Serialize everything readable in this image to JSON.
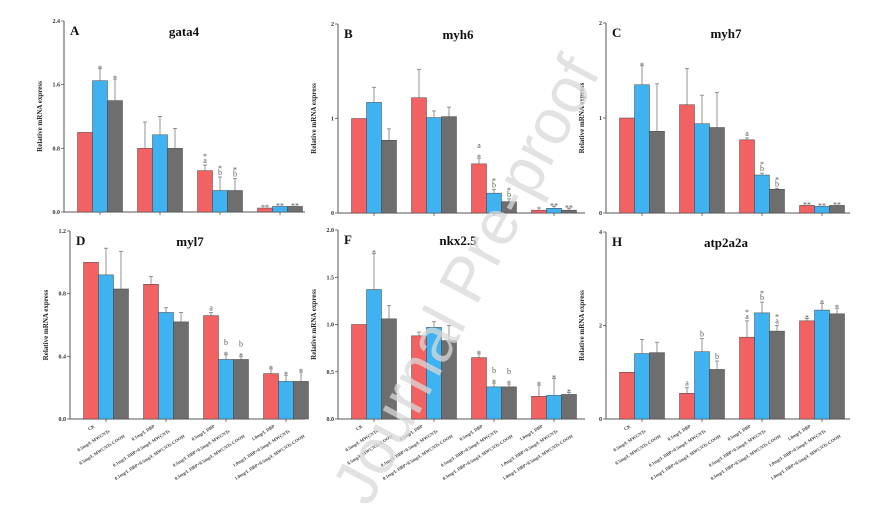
{
  "watermark": "Journal Pre-proof",
  "colors": {
    "series": [
      "#f26262",
      "#3fb3f2",
      "#6e6e6e"
    ],
    "axis": "#555555"
  },
  "chart_data": [
    {
      "panel": "A",
      "title": "gata4",
      "type": "bar",
      "ylabel": "Relative mRNA express",
      "ylim": [
        0,
        2.4
      ],
      "yticks": [
        "0.0",
        "0.8",
        "1.6",
        "2.4"
      ],
      "values": [
        [
          1.0,
          1.65,
          1.4
        ],
        [
          0.8,
          0.97,
          0.8
        ],
        [
          0.52,
          0.27,
          0.27
        ],
        [
          0.05,
          0.07,
          0.07
        ]
      ],
      "errors": [
        [
          0,
          0.15,
          0.27
        ],
        [
          0.33,
          0.23,
          0.25
        ],
        [
          0.07,
          0.17,
          0.15
        ],
        [
          0,
          0,
          0
        ]
      ],
      "annotations": [
        [
          [],
          [
            "*"
          ],
          [
            "*"
          ]
        ],
        [
          [],
          [],
          []
        ],
        [
          [
            "*",
            "a"
          ],
          [
            "*",
            "b"
          ],
          [
            "*",
            "b"
          ]
        ],
        [
          [
            "**"
          ],
          [
            "**"
          ],
          [
            "**"
          ]
        ]
      ]
    },
    {
      "panel": "B",
      "title": "myh6",
      "type": "bar",
      "ylabel": "Relative mRNA express",
      "ylim": [
        0,
        2
      ],
      "yticks": [
        "0",
        "1",
        "2"
      ],
      "values": [
        [
          1.0,
          1.17,
          0.77
        ],
        [
          1.22,
          1.01,
          1.02
        ],
        [
          0.52,
          0.21,
          0.12
        ],
        [
          0.03,
          0.05,
          0.03
        ]
      ],
      "errors": [
        [
          0,
          0.16,
          0.12
        ],
        [
          0.3,
          0.07,
          0.1
        ],
        [
          0.06,
          0.04,
          0.03
        ],
        [
          0,
          0.02,
          0.02
        ]
      ],
      "annotations": [
        [
          [],
          [],
          []
        ],
        [
          [],
          [],
          []
        ],
        [
          [
            "a",
            "*"
          ],
          [
            "*",
            "b"
          ],
          [
            "*",
            "b"
          ]
        ],
        [
          [
            "*"
          ],
          [
            "**"
          ],
          [
            "**"
          ]
        ]
      ]
    },
    {
      "panel": "C",
      "title": "myh7",
      "type": "bar",
      "ylabel": "Relative mRNA express",
      "ylim": [
        0,
        2
      ],
      "yticks": [
        "0",
        "1",
        "2"
      ],
      "values": [
        [
          1.0,
          1.35,
          0.86
        ],
        [
          1.14,
          0.94,
          0.9
        ],
        [
          0.77,
          0.4,
          0.25
        ],
        [
          0.08,
          0.07,
          0.08
        ]
      ],
      "errors": [
        [
          0,
          0.2,
          0.5
        ],
        [
          0.38,
          0.3,
          0.37
        ],
        [
          0.02,
          0.02,
          0.01
        ],
        [
          0,
          0,
          0
        ]
      ],
      "annotations": [
        [
          [],
          [
            "*"
          ],
          []
        ],
        [
          [],
          [],
          []
        ],
        [
          [
            "a"
          ],
          [
            "*",
            "b"
          ],
          [
            "*",
            "b"
          ]
        ],
        [
          [
            "**"
          ],
          [
            "**"
          ],
          [
            "**"
          ]
        ]
      ]
    },
    {
      "panel": "D",
      "title": "myl7",
      "type": "bar",
      "ylabel": "Relative mRNA express",
      "ylim": [
        0,
        1.2
      ],
      "yticks": [
        "0.0",
        "0.4",
        "0.8",
        "1.2"
      ],
      "values": [
        [
          1.0,
          0.92,
          0.83
        ],
        [
          0.86,
          0.68,
          0.62
        ],
        [
          0.66,
          0.38,
          0.38
        ],
        [
          0.29,
          0.24,
          0.24
        ]
      ],
      "errors": [
        [
          0,
          0.17,
          0.24
        ],
        [
          0.05,
          0.03,
          0.06
        ],
        [
          0.02,
          0.03,
          0.02
        ],
        [
          0.03,
          0.04,
          0.06
        ]
      ],
      "annotations": [
        [
          [],
          [],
          []
        ],
        [
          [],
          [],
          []
        ],
        [
          [
            "a"
          ],
          [
            "b",
            "*"
          ],
          [
            "b",
            "*"
          ]
        ],
        [
          [
            "*"
          ],
          [
            "*"
          ],
          [
            "*"
          ]
        ]
      ]
    },
    {
      "panel": "F",
      "title": "nkx2.5",
      "type": "bar",
      "ylabel": "Relative mRNA express",
      "ylim": [
        0,
        2.0
      ],
      "yticks": [
        "0.0",
        "0.5",
        "1.0",
        "1.5",
        "2.0"
      ],
      "values": [
        [
          1.0,
          1.37,
          1.06
        ],
        [
          0.88,
          0.97,
          0.83
        ],
        [
          0.65,
          0.34,
          0.34
        ],
        [
          0.24,
          0.25,
          0.26
        ]
      ],
      "errors": [
        [
          0,
          0.38,
          0.14
        ],
        [
          0.04,
          0.06,
          0.16
        ],
        [
          0.04,
          0.04,
          0.03
        ],
        [
          0.12,
          0.18,
          0.02
        ]
      ],
      "annotations": [
        [
          [],
          [
            "*"
          ],
          []
        ],
        [
          [],
          [],
          []
        ],
        [
          [
            "*"
          ],
          [
            "b",
            "*"
          ],
          [
            "b",
            "*"
          ]
        ],
        [
          [
            "*"
          ],
          [
            "*"
          ],
          [
            "*"
          ]
        ]
      ]
    },
    {
      "panel": "H",
      "title": "atp2a2a",
      "type": "bar",
      "ylabel": "Relative mRNA express",
      "ylim": [
        0,
        4
      ],
      "yticks": [
        "0",
        "2",
        "4"
      ],
      "values": [
        [
          1.0,
          1.4,
          1.42
        ],
        [
          0.55,
          1.44,
          1.06
        ],
        [
          1.75,
          2.27,
          1.88
        ],
        [
          2.1,
          2.33,
          2.25
        ]
      ],
      "errors": [
        [
          0,
          0.3,
          0.22
        ],
        [
          0.12,
          0.28,
          0.18
        ],
        [
          0.35,
          0.23,
          0.12
        ],
        [
          0.05,
          0.14,
          0.12
        ]
      ],
      "annotations": [
        [
          [],
          [],
          []
        ],
        [
          [
            "a"
          ],
          [
            "b"
          ],
          [
            "b"
          ]
        ],
        [
          [
            "*",
            "a"
          ],
          [
            "*",
            "b"
          ],
          [
            "*",
            "a"
          ]
        ],
        [
          [
            "*"
          ],
          [
            "*"
          ],
          [
            "*"
          ]
        ]
      ]
    }
  ],
  "categories": [
    "CK",
    "0.5mg/L MWCNTs",
    "0.5mg/L MWCNTs-COOH",
    "0.1mg/L DBP",
    "0.1mg/L DBP+0.5mg/L MWCNTs",
    "0.1mg/L DBP+0.5mg/L MWCNTs-COOH",
    "0.5mg/L DBP",
    "0.5mg/L DBP+0.5mg/L MWCNTs",
    "0.5mg/L DBP+0.5mg/L MWCNTs-COOH",
    "1.0mg/L DBP",
    "1.0mg/L DBP+0.5mg/L MWCNTs",
    "1.0mg/L DBP+0.5mg/L MWCNTs-COOH"
  ]
}
